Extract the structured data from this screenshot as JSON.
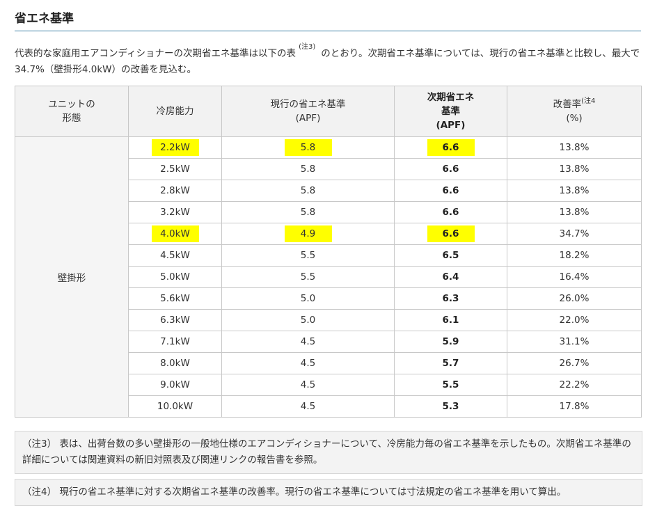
{
  "section_title": "省エネ基準",
  "intro": {
    "text_before": "代表的な家庭用エアコンディショナーの次期省エネ基準は以下の表",
    "note_ref": "(注3)",
    "text_after": "のとおり。次期省エネ基準については、現行の省エネ基準と比較し、最大で34.7%（壁掛形4.0kW）の改善を見込む。"
  },
  "table": {
    "headers": {
      "unit_line1": "ユニットの",
      "unit_line2": "形態",
      "capacity": "冷房能力",
      "current_line1": "現行の省エネ基準",
      "current_line2": "(APF)",
      "next_line1": "次期省エネ",
      "next_line2": "基準",
      "next_line3": "(APF)",
      "rate_label": "改善率",
      "rate_note": "(注4",
      "rate_unit": "(%)"
    },
    "unit_type": "壁掛形",
    "highlight_color": "#ffff00",
    "rows": [
      {
        "capacity": "2.2kW",
        "current": "5.8",
        "next": "6.6",
        "rate": "13.8%"
      },
      {
        "capacity": "2.5kW",
        "current": "5.8",
        "next": "6.6",
        "rate": "13.8%"
      },
      {
        "capacity": "2.8kW",
        "current": "5.8",
        "next": "6.6",
        "rate": "13.8%"
      },
      {
        "capacity": "3.2kW",
        "current": "5.8",
        "next": "6.6",
        "rate": "13.8%"
      },
      {
        "capacity": "4.0kW",
        "current": "4.9",
        "next": "6.6",
        "rate": "34.7%"
      },
      {
        "capacity": "4.5kW",
        "current": "5.5",
        "next": "6.5",
        "rate": "18.2%"
      },
      {
        "capacity": "5.0kW",
        "current": "5.5",
        "next": "6.4",
        "rate": "16.4%"
      },
      {
        "capacity": "5.6kW",
        "current": "5.0",
        "next": "6.3",
        "rate": "26.0%"
      },
      {
        "capacity": "6.3kW",
        "current": "5.0",
        "next": "6.1",
        "rate": "22.0%"
      },
      {
        "capacity": "7.1kW",
        "current": "4.5",
        "next": "5.9",
        "rate": "31.1%"
      },
      {
        "capacity": "8.0kW",
        "current": "4.5",
        "next": "5.7",
        "rate": "26.7%"
      },
      {
        "capacity": "9.0kW",
        "current": "4.5",
        "next": "5.5",
        "rate": "22.2%"
      },
      {
        "capacity": "10.0kW",
        "current": "4.5",
        "next": "5.3",
        "rate": "17.8%"
      }
    ]
  },
  "notes": {
    "note3": "（注3） 表は、出荷台数の多い壁掛形の一般地仕様のエアコンディショナーについて、冷房能力毎の省エネ基準を示したもの。次期省エネ基準の詳細については関連資料の新旧対照表及び関連リンクの報告書を参照。",
    "note4": "（注4） 現行の省エネ基準に対する次期省エネ基準の改善率。現行の省エネ基準については寸法規定の省エネ基準を用いて算出。"
  }
}
